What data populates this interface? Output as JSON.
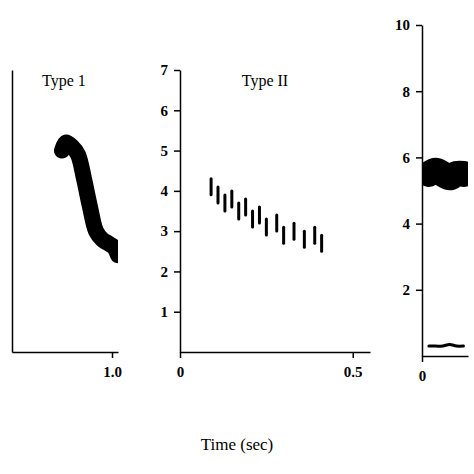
{
  "chart_data": [
    {
      "type": "line",
      "title": "Type 1",
      "x": [
        0.75,
        0.77,
        0.8,
        0.83,
        0.86,
        0.89,
        0.92,
        0.95,
        0.98,
        1.01,
        1.03
      ],
      "series": [
        {
          "color": "#000000",
          "line_style": "solid",
          "values": [
            5.0,
            5.2,
            5.1,
            4.9,
            4.3,
            3.6,
            3.0,
            2.8,
            2.7,
            2.6,
            2.4
          ]
        }
      ],
      "xlim": [
        0.5,
        1.03
      ],
      "ylim": [
        0,
        7
      ],
      "xticks": [
        {
          "value": 1,
          "label": "1.0"
        }
      ],
      "tick_labels": "x"
    },
    {
      "type": "scatter",
      "title": "Type II",
      "xlabel": "Time (sec)",
      "x": [
        0.09,
        0.11,
        0.13,
        0.15,
        0.17,
        0.19,
        0.21,
        0.23,
        0.25,
        0.28,
        0.3,
        0.33,
        0.36,
        0.39,
        0.41
      ],
      "series": [
        {
          "color": "#000000",
          "marker": "dash",
          "values": [
            4.1,
            3.9,
            3.7,
            3.8,
            3.5,
            3.6,
            3.3,
            3.4,
            3.1,
            3.2,
            2.9,
            3.0,
            2.8,
            2.9,
            2.7
          ]
        }
      ],
      "xlim": [
        0,
        0.55
      ],
      "ylim": [
        0,
        7
      ],
      "xticks": [
        0,
        0.5
      ],
      "yticks": [
        1,
        2,
        3,
        4,
        5,
        6,
        7
      ]
    },
    {
      "type": "line",
      "x": [
        0.03,
        0.06,
        0.09,
        0.12,
        0.15,
        0.18
      ],
      "series": [
        {
          "color": "#000000",
          "line_style": "solid",
          "values": [
            5.5,
            5.6,
            5.5,
            5.4,
            5.5,
            5.5
          ]
        },
        {
          "color": "#000000",
          "line_style": "solid",
          "values": [
            0.3,
            0.3,
            0.3,
            0.35,
            0.3,
            0.3
          ]
        }
      ],
      "xlim": [
        0,
        0.2
      ],
      "ylim": [
        0,
        10
      ],
      "xticks": [
        0
      ],
      "yticks": [
        2,
        4,
        6,
        8,
        10
      ]
    }
  ]
}
